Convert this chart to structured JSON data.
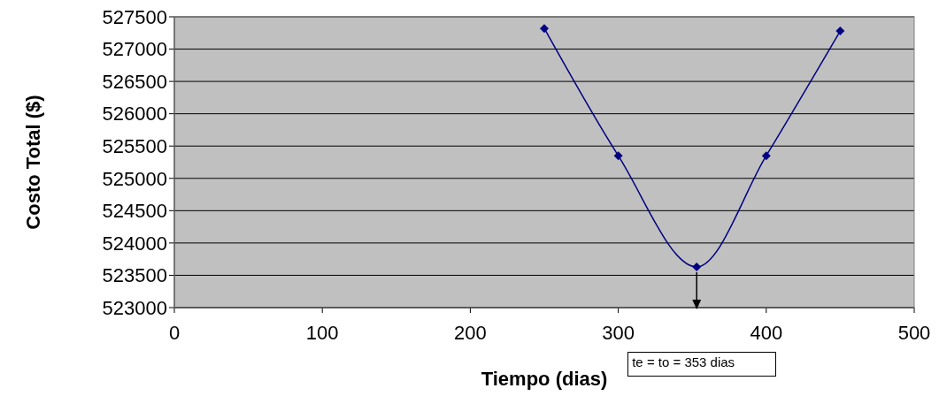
{
  "chart_data": {
    "type": "line",
    "xlabel": "Tiempo (dias)",
    "ylabel": "Costo Total ($)",
    "x": [
      250,
      300,
      353,
      400,
      450
    ],
    "series": [
      {
        "color": "#000080",
        "values": [
          527320,
          525350,
          523630,
          525350,
          527280
        ]
      }
    ],
    "xlim": [
      0,
      500
    ],
    "xticks": [
      0,
      100,
      200,
      300,
      400,
      500
    ],
    "ylim": [
      523000,
      527500
    ],
    "yticks": [
      523000,
      523500,
      524000,
      524500,
      525000,
      525500,
      526000,
      526500,
      527000,
      527500
    ],
    "grid": "y",
    "marker": "diamond",
    "line_style": "solid",
    "annotations": [
      "te = to = 353 dias"
    ]
  }
}
